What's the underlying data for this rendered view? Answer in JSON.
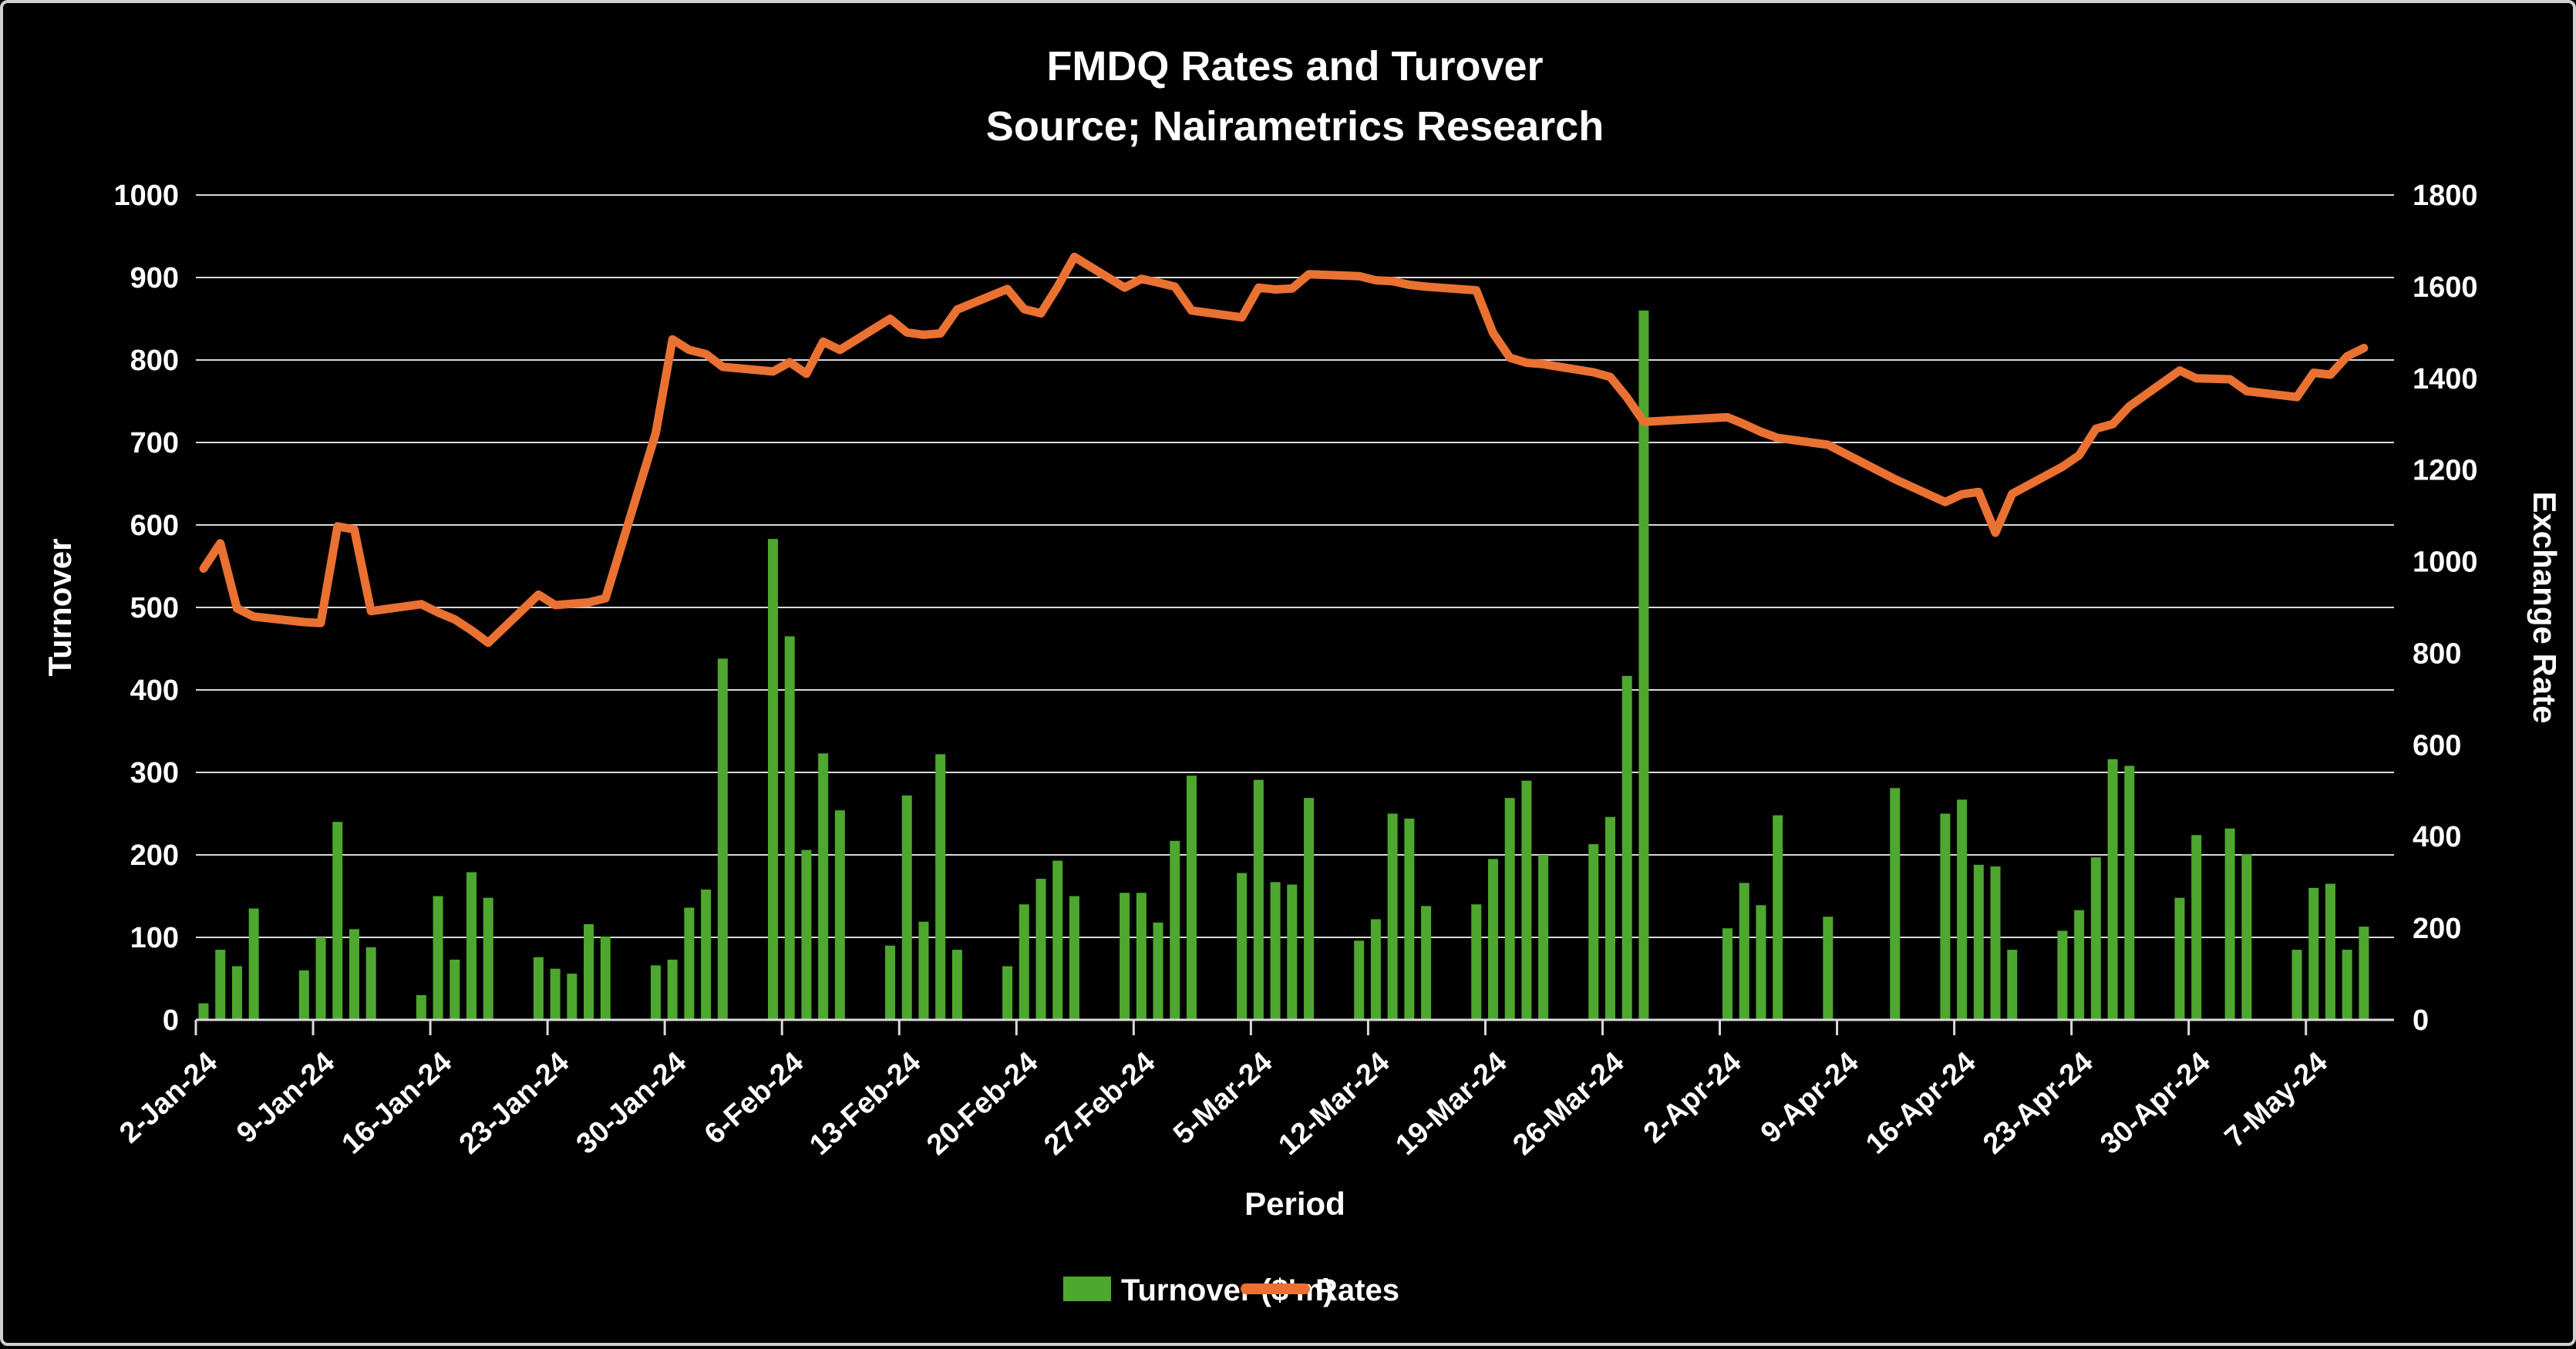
{
  "title": {
    "line1": "FMDQ Rates and Turover",
    "line2": "Source; Nairametrics Research"
  },
  "legend": {
    "turnover_label": "Turnover ($'m)",
    "rates_label": "Rates"
  },
  "axes": {
    "left_title": "Turnover",
    "right_title": "Exchange Rate",
    "x_title": "Period",
    "left_ticks": [
      "0",
      "100",
      "200",
      "300",
      "400",
      "500",
      "600",
      "700",
      "800",
      "900",
      "1000"
    ],
    "right_ticks": [
      "0",
      "200",
      "400",
      "600",
      "800",
      "1000",
      "1200",
      "1400",
      "1600",
      "1800"
    ],
    "x_ticks": [
      {
        "label": "2-Jan-24",
        "date": "2024-01-02"
      },
      {
        "label": "9-Jan-24",
        "date": "2024-01-09"
      },
      {
        "label": "16-Jan-24",
        "date": "2024-01-16"
      },
      {
        "label": "23-Jan-24",
        "date": "2024-01-23"
      },
      {
        "label": "30-Jan-24",
        "date": "2024-01-30"
      },
      {
        "label": "6-Feb-24",
        "date": "2024-02-06"
      },
      {
        "label": "13-Feb-24",
        "date": "2024-02-13"
      },
      {
        "label": "20-Feb-24",
        "date": "2024-02-20"
      },
      {
        "label": "27-Feb-24",
        "date": "2024-02-27"
      },
      {
        "label": "5-Mar-24",
        "date": "2024-03-05"
      },
      {
        "label": "12-Mar-24",
        "date": "2024-03-12"
      },
      {
        "label": "19-Mar-24",
        "date": "2024-03-19"
      },
      {
        "label": "26-Mar-24",
        "date": "2024-03-26"
      },
      {
        "label": "2-Apr-24",
        "date": "2024-04-02"
      },
      {
        "label": "9-Apr-24",
        "date": "2024-04-09"
      },
      {
        "label": "16-Apr-24",
        "date": "2024-04-16"
      },
      {
        "label": "23-Apr-24",
        "date": "2024-04-23"
      },
      {
        "label": "30-Apr-24",
        "date": "2024-04-30"
      },
      {
        "label": "7-May-24",
        "date": "2024-05-07"
      }
    ]
  },
  "colors": {
    "background": "#000000",
    "bar": "#4EA72E",
    "line": "#E97132",
    "grid": "#D9D9D9",
    "text": "#FFFFFF",
    "frame": "#CFCFCF"
  },
  "chart_data": {
    "type": "bar",
    "subtype": "bar+line dual axis",
    "title": "FMDQ Rates and Turover",
    "subtitle": "Source; Nairametrics Research",
    "xlabel": "Period",
    "grid": "horizontal",
    "legend_position": "bottom",
    "left_axis": {
      "title": "Turnover",
      "min": 0,
      "max": 1000,
      "step": 100
    },
    "right_axis": {
      "title": "Exchange Rate",
      "min": 0,
      "max": 1800,
      "step": 200
    },
    "series": [
      {
        "name": "Turnover ($'m)",
        "type": "bar",
        "axis": "left",
        "key": "turnover"
      },
      {
        "name": "Rates",
        "type": "line",
        "axis": "right",
        "key": "rate"
      }
    ],
    "points": [
      {
        "date": "2024-01-02",
        "turnover": 20,
        "rate": 985
      },
      {
        "date": "2024-01-03",
        "turnover": 85,
        "rate": 1040
      },
      {
        "date": "2024-01-04",
        "turnover": 65,
        "rate": 898
      },
      {
        "date": "2024-01-05",
        "turnover": 135,
        "rate": 880
      },
      {
        "date": "2024-01-08",
        "turnover": 60,
        "rate": 868
      },
      {
        "date": "2024-01-09",
        "turnover": 100,
        "rate": 866
      },
      {
        "date": "2024-01-10",
        "turnover": 240,
        "rate": 1077
      },
      {
        "date": "2024-01-11",
        "turnover": 110,
        "rate": 1070
      },
      {
        "date": "2024-01-12",
        "turnover": 88,
        "rate": 892
      },
      {
        "date": "2024-01-15",
        "turnover": 30,
        "rate": 907
      },
      {
        "date": "2024-01-16",
        "turnover": 150,
        "rate": 889
      },
      {
        "date": "2024-01-17",
        "turnover": 73,
        "rate": 874
      },
      {
        "date": "2024-01-18",
        "turnover": 179,
        "rate": 850
      },
      {
        "date": "2024-01-19",
        "turnover": 148,
        "rate": 823
      },
      {
        "date": "2024-01-22",
        "turnover": 76,
        "rate": 928
      },
      {
        "date": "2024-01-23",
        "turnover": 62,
        "rate": 905
      },
      {
        "date": "2024-01-24",
        "turnover": 56,
        "rate": 908
      },
      {
        "date": "2024-01-25",
        "turnover": 116,
        "rate": 911
      },
      {
        "date": "2024-01-26",
        "turnover": 101,
        "rate": 920
      },
      {
        "date": "2024-01-29",
        "turnover": 66,
        "rate": 1280
      },
      {
        "date": "2024-01-30",
        "turnover": 73,
        "rate": 1485
      },
      {
        "date": "2024-01-31",
        "turnover": 136,
        "rate": 1462
      },
      {
        "date": "2024-02-01",
        "turnover": 158,
        "rate": 1453
      },
      {
        "date": "2024-02-02",
        "turnover": 438,
        "rate": 1425
      },
      {
        "date": "2024-02-05",
        "turnover": 583,
        "rate": 1415
      },
      {
        "date": "2024-02-06",
        "turnover": 465,
        "rate": 1435
      },
      {
        "date": "2024-02-07",
        "turnover": 206,
        "rate": 1410
      },
      {
        "date": "2024-02-08",
        "turnover": 323,
        "rate": 1480
      },
      {
        "date": "2024-02-09",
        "turnover": 254,
        "rate": 1462
      },
      {
        "date": "2024-02-12",
        "turnover": 90,
        "rate": 1530
      },
      {
        "date": "2024-02-13",
        "turnover": 272,
        "rate": 1500
      },
      {
        "date": "2024-02-14",
        "turnover": 119,
        "rate": 1495
      },
      {
        "date": "2024-02-15",
        "turnover": 322,
        "rate": 1498
      },
      {
        "date": "2024-02-16",
        "turnover": 85,
        "rate": 1550
      },
      {
        "date": "2024-02-19",
        "turnover": 65,
        "rate": 1595
      },
      {
        "date": "2024-02-20",
        "turnover": 140,
        "rate": 1551
      },
      {
        "date": "2024-02-21",
        "turnover": 171,
        "rate": 1542
      },
      {
        "date": "2024-02-22",
        "turnover": 193,
        "rate": 1600
      },
      {
        "date": "2024-02-23",
        "turnover": 150,
        "rate": 1665
      },
      {
        "date": "2024-02-26",
        "turnover": 154,
        "rate": 1598
      },
      {
        "date": "2024-02-27",
        "turnover": 154,
        "rate": 1617
      },
      {
        "date": "2024-02-28",
        "turnover": 118,
        "rate": 1609
      },
      {
        "date": "2024-02-29",
        "turnover": 217,
        "rate": 1600
      },
      {
        "date": "2024-03-01",
        "turnover": 296,
        "rate": 1548
      },
      {
        "date": "2024-03-04",
        "turnover": 178,
        "rate": 1533
      },
      {
        "date": "2024-03-05",
        "turnover": 291,
        "rate": 1598
      },
      {
        "date": "2024-03-06",
        "turnover": 167,
        "rate": 1594
      },
      {
        "date": "2024-03-07",
        "turnover": 164,
        "rate": 1596
      },
      {
        "date": "2024-03-08",
        "turnover": 269,
        "rate": 1627
      },
      {
        "date": "2024-03-11",
        "turnover": 96,
        "rate": 1623
      },
      {
        "date": "2024-03-12",
        "turnover": 122,
        "rate": 1614
      },
      {
        "date": "2024-03-13",
        "turnover": 250,
        "rate": 1612
      },
      {
        "date": "2024-03-14",
        "turnover": 244,
        "rate": 1604
      },
      {
        "date": "2024-03-15",
        "turnover": 138,
        "rate": 1600
      },
      {
        "date": "2024-03-18",
        "turnover": 140,
        "rate": 1592
      },
      {
        "date": "2024-03-19",
        "turnover": 195,
        "rate": 1499
      },
      {
        "date": "2024-03-20",
        "turnover": 269,
        "rate": 1445
      },
      {
        "date": "2024-03-21",
        "turnover": 290,
        "rate": 1434
      },
      {
        "date": "2024-03-22",
        "turnover": 200,
        "rate": 1431
      },
      {
        "date": "2024-03-25",
        "turnover": 213,
        "rate": 1413
      },
      {
        "date": "2024-03-26",
        "turnover": 246,
        "rate": 1403
      },
      {
        "date": "2024-03-27",
        "turnover": 417,
        "rate": 1358
      },
      {
        "date": "2024-03-28",
        "turnover": 860,
        "rate": 1305
      },
      {
        "date": "2024-04-02",
        "turnover": 111,
        "rate": 1315
      },
      {
        "date": "2024-04-03",
        "turnover": 166,
        "rate": 1300
      },
      {
        "date": "2024-04-04",
        "turnover": 139,
        "rate": 1283
      },
      {
        "date": "2024-04-05",
        "turnover": 248,
        "rate": 1270
      },
      {
        "date": "2024-04-08",
        "turnover": 125,
        "rate": 1255
      },
      {
        "date": "2024-04-12",
        "turnover": 281,
        "rate": 1180
      },
      {
        "date": "2024-04-15",
        "turnover": 250,
        "rate": 1130
      },
      {
        "date": "2024-04-16",
        "turnover": 267,
        "rate": 1147
      },
      {
        "date": "2024-04-17",
        "turnover": 188,
        "rate": 1152
      },
      {
        "date": "2024-04-18",
        "turnover": 186,
        "rate": 1063
      },
      {
        "date": "2024-04-19",
        "turnover": 85,
        "rate": 1148
      },
      {
        "date": "2024-04-22",
        "turnover": 108,
        "rate": 1207
      },
      {
        "date": "2024-04-23",
        "turnover": 133,
        "rate": 1232
      },
      {
        "date": "2024-04-24",
        "turnover": 197,
        "rate": 1290
      },
      {
        "date": "2024-04-25",
        "turnover": 316,
        "rate": 1300
      },
      {
        "date": "2024-04-26",
        "turnover": 308,
        "rate": 1339
      },
      {
        "date": "2024-04-29",
        "turnover": 148,
        "rate": 1417
      },
      {
        "date": "2024-04-30",
        "turnover": 224,
        "rate": 1400
      },
      {
        "date": "2024-05-02",
        "turnover": 232,
        "rate": 1398
      },
      {
        "date": "2024-05-03",
        "turnover": 201,
        "rate": 1372
      },
      {
        "date": "2024-05-06",
        "turnover": 85,
        "rate": 1359
      },
      {
        "date": "2024-05-07",
        "turnover": 160,
        "rate": 1412
      },
      {
        "date": "2024-05-08",
        "turnover": 165,
        "rate": 1408
      },
      {
        "date": "2024-05-09",
        "turnover": 85,
        "rate": 1448
      },
      {
        "date": "2024-05-10",
        "turnover": 113,
        "rate": 1466
      }
    ]
  }
}
